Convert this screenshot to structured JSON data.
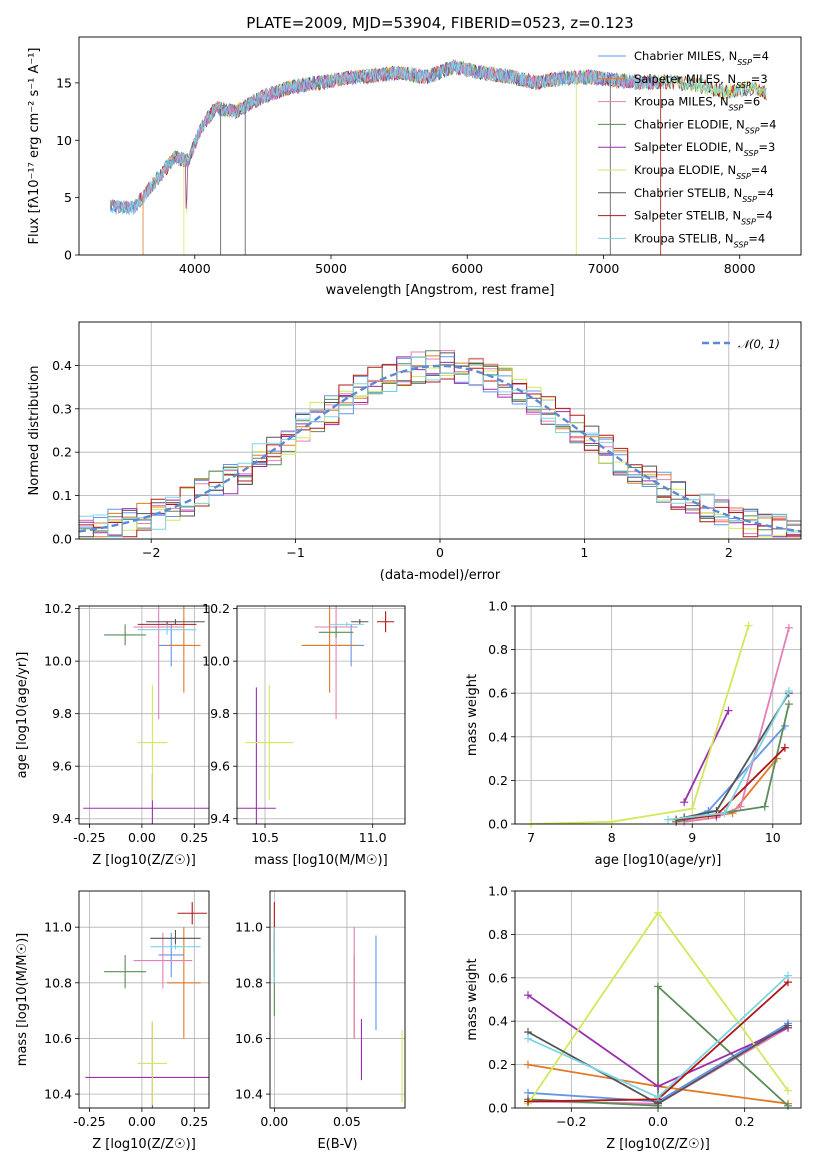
{
  "colors": [
    "#6495ed",
    "#e07b28",
    "#e37fb9",
    "#5b8c5a",
    "#9b2fae",
    "#d3e85c",
    "#555555",
    "#b01818",
    "#7dd5e3"
  ],
  "chart_data": [
    {
      "type": "line",
      "title": "PLATE=2009, MJD=53904, FIBERID=0523, z=0.123",
      "xlabel": "wavelength [Angstrom, rest frame]",
      "ylabel": "Flux [fλ10⁻¹⁷ erg cm⁻² s⁻¹ A⁻¹]",
      "xlim": [
        3150,
        8450
      ],
      "ylim": [
        0,
        19
      ],
      "xticks": [
        4000,
        5000,
        6000,
        7000,
        8000
      ],
      "yticks": [
        0,
        5,
        10,
        15
      ],
      "grid": false,
      "legend": "top-right",
      "spectrum_anchors": {
        "x": [
          3400,
          3550,
          3650,
          3750,
          3850,
          3950,
          4050,
          4150,
          4300,
          4500,
          4700,
          4900,
          5100,
          5300,
          5500,
          5700,
          5900,
          6100,
          6300,
          6500,
          6700,
          6900,
          7100,
          7300,
          7500,
          7700,
          7900,
          8100,
          8200
        ],
        "y": [
          4.2,
          4.1,
          5.5,
          7.0,
          8.5,
          8.2,
          11.2,
          12.8,
          12.5,
          13.8,
          14.6,
          15.0,
          15.4,
          15.6,
          15.9,
          15.5,
          16.4,
          15.9,
          15.6,
          15.0,
          15.4,
          15.5,
          15.2,
          15.0,
          15.1,
          14.8,
          14.2,
          14.6,
          14.1
        ]
      },
      "series": [
        {
          "name": "Chabrier MILES, N_SSP=4",
          "label": "Chabrier MILES, N",
          "sub": "SSP",
          "tail": "=4"
        },
        {
          "name": "Salpeter MILES, N_SSP=3",
          "label": "Salpeter MILES, N",
          "sub": "SSP",
          "tail": "=3"
        },
        {
          "name": "Kroupa MILES, N_SSP=6",
          "label": "Kroupa MILES, N",
          "sub": "SSP",
          "tail": "=6"
        },
        {
          "name": "Chabrier ELODIE, N_SSP=4",
          "label": "Chabrier ELODIE, N",
          "sub": "SSP",
          "tail": "=4"
        },
        {
          "name": "Salpeter ELODIE, N_SSP=3",
          "label": "Salpeter ELODIE, N",
          "sub": "SSP",
          "tail": "=3"
        },
        {
          "name": "Kroupa ELODIE, N_SSP=4",
          "label": "Kroupa ELODIE, N",
          "sub": "SSP",
          "tail": "=4"
        },
        {
          "name": "Chabrier STELIB, N_SSP=4",
          "label": "Chabrier STELIB, N",
          "sub": "SSP",
          "tail": "=4"
        },
        {
          "name": "Salpeter STELIB, N_SSP=4",
          "label": "Salpeter STELIB, N",
          "sub": "SSP",
          "tail": "=4"
        },
        {
          "name": "Kroupa STELIB, N_SSP=4",
          "label": "Kroupa STELIB, N",
          "sub": "SSP",
          "tail": "=4"
        }
      ]
    },
    {
      "type": "line",
      "xlabel": "(data-model)/error",
      "ylabel": "Normed distribution",
      "xlim": [
        -2.5,
        2.5
      ],
      "ylim": [
        0,
        0.5
      ],
      "xticks": [
        -2,
        -1,
        0,
        1,
        2
      ],
      "yticks": [
        0.0,
        0.1,
        0.2,
        0.3,
        0.4
      ],
      "grid": true,
      "legend": "top-right",
      "reference_curve": {
        "name": "𝒩(0, 1)",
        "style": "dashed"
      },
      "bin_width": 0.1
    },
    {
      "type": "scatter",
      "xlabel": "Z [log10(Z/Z☉)]",
      "ylabel": "age [log10(age/yr)]",
      "xlim": [
        -0.3,
        0.32
      ],
      "ylim": [
        9.38,
        10.21
      ],
      "xticks": [
        -0.25,
        0.0,
        0.25
      ],
      "yticks": [
        9.4,
        9.6,
        9.8,
        10.0,
        10.2
      ],
      "grid": true,
      "points": [
        {
          "x": 0.14,
          "y": 10.06,
          "xerr": 0.06,
          "yerr": 0.08
        },
        {
          "x": 0.2,
          "y": 10.06,
          "xerr": 0.08,
          "yerr": 0.18
        },
        {
          "x": 0.08,
          "y": 10.13,
          "xerr": 0.12,
          "yerr": 0.35
        },
        {
          "x": -0.08,
          "y": 10.1,
          "xerr": 0.1,
          "yerr": 0.04
        },
        {
          "x": 0.05,
          "y": 9.44,
          "xerr": 0.33,
          "yerr": 0.13
        },
        {
          "x": 0.05,
          "y": 9.69,
          "xerr": 0.07,
          "yerr": 0.22
        },
        {
          "x": 0.16,
          "y": 10.15,
          "xerr": 0.14,
          "yerr": 0.01
        },
        {
          "x": 0.12,
          "y": 10.14,
          "xerr": 0.14,
          "yerr": 0.01
        },
        {
          "x": 0.12,
          "y": 10.12,
          "xerr": 0.14,
          "yerr": 0.02
        }
      ]
    },
    {
      "type": "scatter",
      "xlabel": "mass [log10(M/M☉)]",
      "ylabel": "",
      "xlim": [
        10.37,
        11.15
      ],
      "ylim": [
        9.38,
        10.21
      ],
      "xticks": [
        10.5,
        11.0
      ],
      "yticks": [
        9.4,
        9.6,
        9.8,
        10.0,
        10.2
      ],
      "grid": true,
      "points": [
        {
          "x": 10.9,
          "y": 10.06,
          "xerr": 0.06,
          "yerr": 0.08
        },
        {
          "x": 10.8,
          "y": 10.06,
          "xerr": 0.13,
          "yerr": 0.18
        },
        {
          "x": 10.83,
          "y": 10.13,
          "xerr": 0.1,
          "yerr": 0.35
        },
        {
          "x": 10.83,
          "y": 10.11,
          "xerr": 0.08,
          "yerr": 0.02
        },
        {
          "x": 10.46,
          "y": 9.44,
          "xerr": 0.09,
          "yerr": 0.46
        },
        {
          "x": 10.52,
          "y": 9.69,
          "xerr": 0.11,
          "yerr": 0.22
        },
        {
          "x": 10.94,
          "y": 10.15,
          "xerr": 0.04,
          "yerr": 0.01
        },
        {
          "x": 11.06,
          "y": 10.15,
          "xerr": 0.04,
          "yerr": 0.04
        },
        {
          "x": 10.88,
          "y": 10.14,
          "xerr": 0.08,
          "yerr": 0.01
        }
      ]
    },
    {
      "type": "line",
      "xlabel": "age [log10(age/yr)]",
      "ylabel": "mass weight",
      "xlim": [
        6.8,
        10.35
      ],
      "ylim": [
        0,
        1.0
      ],
      "xticks": [
        7,
        8,
        9,
        10
      ],
      "yticks": [
        0.0,
        0.2,
        0.4,
        0.6,
        0.8,
        1.0
      ],
      "grid": true,
      "series": [
        {
          "x": [
            8.8,
            9.2,
            10.15
          ],
          "y": [
            0.01,
            0.06,
            0.45
          ]
        },
        {
          "x": [
            8.9,
            9.5,
            10.05
          ],
          "y": [
            0.02,
            0.05,
            0.3
          ]
        },
        {
          "x": [
            8.9,
            9.3,
            9.6,
            10.2
          ],
          "y": [
            0.01,
            0.03,
            0.08,
            0.9
          ]
        },
        {
          "x": [
            8.8,
            9.2,
            9.9,
            10.2
          ],
          "y": [
            0.01,
            0.04,
            0.08,
            0.55
          ]
        },
        {
          "x": [
            8.9,
            9.45
          ],
          "y": [
            0.1,
            0.52
          ]
        },
        {
          "x": [
            7.0,
            8.0,
            9.0,
            9.7
          ],
          "y": [
            0.0,
            0.01,
            0.07,
            0.91
          ]
        },
        {
          "x": [
            8.9,
            9.3,
            10.2
          ],
          "y": [
            0.03,
            0.06,
            0.6
          ]
        },
        {
          "x": [
            8.8,
            9.3,
            10.15
          ],
          "y": [
            0.02,
            0.04,
            0.35
          ]
        },
        {
          "x": [
            8.7,
            9.4,
            10.2
          ],
          "y": [
            0.02,
            0.05,
            0.61
          ]
        }
      ]
    },
    {
      "type": "scatter",
      "xlabel": "Z [log10(Z/Z☉)]",
      "ylabel": "mass [log10(M/M☉)]",
      "xlim": [
        -0.3,
        0.32
      ],
      "ylim": [
        10.35,
        11.13
      ],
      "xticks": [
        -0.25,
        0.0,
        0.25
      ],
      "yticks": [
        10.4,
        10.6,
        10.8,
        11.0
      ],
      "grid": true,
      "points": [
        {
          "x": 0.14,
          "y": 10.9,
          "xerr": 0.06,
          "yerr": 0.08
        },
        {
          "x": 0.2,
          "y": 10.8,
          "xerr": 0.08,
          "yerr": 0.2
        },
        {
          "x": 0.1,
          "y": 10.88,
          "xerr": 0.14,
          "yerr": 0.1
        },
        {
          "x": -0.08,
          "y": 10.84,
          "xerr": 0.1,
          "yerr": 0.06
        },
        {
          "x": 0.05,
          "y": 10.46,
          "xerr": 0.32,
          "yerr": 0.2
        },
        {
          "x": 0.05,
          "y": 10.51,
          "xerr": 0.07,
          "yerr": 0.15
        },
        {
          "x": 0.16,
          "y": 10.96,
          "xerr": 0.12,
          "yerr": 0.03
        },
        {
          "x": 0.24,
          "y": 11.05,
          "xerr": 0.07,
          "yerr": 0.04
        },
        {
          "x": 0.16,
          "y": 10.93,
          "xerr": 0.12,
          "yerr": 0.01
        }
      ]
    },
    {
      "type": "scatter",
      "xlabel": "E(B-V)",
      "ylabel": "",
      "xlim": [
        -0.003,
        0.09
      ],
      "ylim": [
        10.35,
        11.13
      ],
      "xticks": [
        0.0,
        0.05
      ],
      "yticks": [
        10.4,
        10.6,
        10.8,
        11.0
      ],
      "grid": true,
      "points": [
        {
          "x": 0.07,
          "y": 10.8,
          "yerr": 0.17
        },
        {
          "x": 0.055,
          "y": 10.75,
          "yerr": 0.15
        },
        {
          "x": 0.055,
          "y": 10.8,
          "yerr": 0.2
        },
        {
          "x": 0.0,
          "y": 10.8,
          "yerr": 0.12
        },
        {
          "x": 0.06,
          "y": 10.56,
          "yerr": 0.11
        },
        {
          "x": 0.088,
          "y": 10.5,
          "yerr": 0.13
        },
        {
          "x": 0.0,
          "y": 10.9,
          "yerr": 0.08
        },
        {
          "x": 0.0,
          "y": 11.0,
          "yerr": 0.09
        },
        {
          "x": 0.0,
          "y": 10.9,
          "yerr": 0.1
        }
      ]
    },
    {
      "type": "line",
      "xlabel": "Z [log10(Z/Z☉)]",
      "ylabel": "mass weight",
      "xlim": [
        -0.33,
        0.33
      ],
      "ylim": [
        0,
        1.0
      ],
      "xticks": [
        -0.2,
        0.0,
        0.2
      ],
      "yticks": [
        0.0,
        0.2,
        0.4,
        0.6,
        0.8,
        1.0
      ],
      "grid": true,
      "series": [
        {
          "x": [
            -0.3,
            0.0,
            0.3
          ],
          "y": [
            0.07,
            0.03,
            0.39
          ]
        },
        {
          "x": [
            -0.3,
            0.0,
            0.3
          ],
          "y": [
            0.2,
            0.1,
            0.02
          ]
        },
        {
          "x": [
            -0.3,
            0.0,
            0.3
          ],
          "y": [
            0.03,
            0.02,
            0.37
          ]
        },
        {
          "x": [
            -0.3,
            0.0,
            0.0,
            0.3
          ],
          "y": [
            0.04,
            0.01,
            0.56,
            0.01
          ]
        },
        {
          "x": [
            -0.3,
            0.0,
            0.3
          ],
          "y": [
            0.52,
            0.1,
            0.37
          ]
        },
        {
          "x": [
            -0.3,
            0.0,
            0.3
          ],
          "y": [
            0.02,
            0.9,
            0.08
          ]
        },
        {
          "x": [
            -0.3,
            0.0,
            0.3
          ],
          "y": [
            0.35,
            0.02,
            0.38
          ]
        },
        {
          "x": [
            -0.3,
            0.0,
            0.3
          ],
          "y": [
            0.03,
            0.04,
            0.58
          ]
        },
        {
          "x": [
            -0.3,
            0.0,
            0.3
          ],
          "y": [
            0.32,
            0.05,
            0.61
          ]
        }
      ]
    }
  ]
}
